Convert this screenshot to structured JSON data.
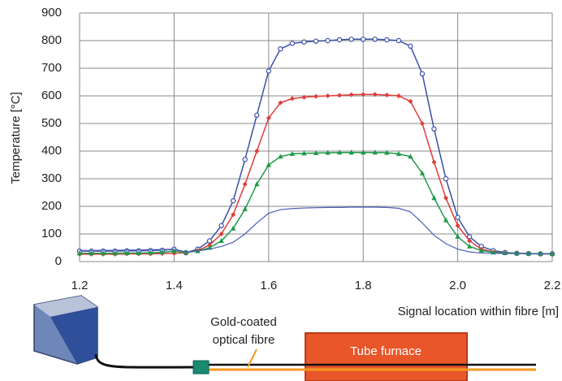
{
  "chart_data": {
    "type": "line",
    "y_label": "Temperature [°C]",
    "x_label": "Signal location within fibre [m]",
    "x": [
      1.2,
      1.225,
      1.25,
      1.275,
      1.3,
      1.325,
      1.35,
      1.375,
      1.4,
      1.425,
      1.45,
      1.475,
      1.5,
      1.525,
      1.55,
      1.575,
      1.6,
      1.625,
      1.65,
      1.675,
      1.7,
      1.725,
      1.75,
      1.775,
      1.8,
      1.825,
      1.85,
      1.875,
      1.9,
      1.925,
      1.95,
      1.975,
      2.0,
      2.025,
      2.05,
      2.075,
      2.1,
      2.125,
      2.15,
      2.175,
      2.2
    ],
    "series": [
      {
        "color": "#3a4fa8",
        "marker": "circle",
        "values": [
          38,
          38,
          38,
          38,
          39,
          39,
          40,
          41,
          45,
          32,
          45,
          75,
          130,
          220,
          370,
          530,
          690,
          770,
          790,
          795,
          798,
          800,
          803,
          805,
          805,
          805,
          803,
          800,
          780,
          680,
          480,
          300,
          160,
          90,
          55,
          40,
          33,
          30,
          29,
          28,
          28
        ]
      },
      {
        "color": "#e03c3c",
        "marker": "diamond",
        "values": [
          27,
          27,
          27,
          27,
          28,
          28,
          28,
          29,
          30,
          32,
          40,
          60,
          100,
          170,
          280,
          400,
          520,
          575,
          590,
          595,
          598,
          600,
          602,
          604,
          605,
          605,
          603,
          600,
          580,
          500,
          360,
          230,
          130,
          75,
          45,
          35,
          31,
          30,
          29,
          28,
          28
        ]
      },
      {
        "color": "#1f9a4a",
        "marker": "triangle",
        "values": [
          30,
          30,
          30,
          30,
          31,
          31,
          32,
          34,
          38,
          34,
          38,
          50,
          75,
          120,
          190,
          280,
          350,
          380,
          390,
          392,
          393,
          394,
          395,
          395,
          395,
          395,
          394,
          390,
          380,
          320,
          230,
          150,
          90,
          55,
          40,
          33,
          31,
          30,
          29,
          29,
          28
        ]
      },
      {
        "color": "#4a5fb8",
        "values": [
          40,
          40,
          41,
          41,
          42,
          42,
          43,
          44,
          45,
          35,
          38,
          45,
          55,
          70,
          100,
          140,
          175,
          188,
          192,
          194,
          195,
          196,
          196,
          197,
          197,
          197,
          196,
          193,
          180,
          140,
          95,
          65,
          45,
          35,
          31,
          30,
          29,
          29,
          28,
          28,
          28
        ]
      }
    ],
    "xlim": [
      1.2,
      2.2
    ],
    "ylim": [
      0,
      900
    ],
    "xticks": [
      1.2,
      1.4,
      1.6,
      1.8,
      {
        "value": 2.0,
        "label": "2.0"
      },
      2.2
    ],
    "yticks": [
      0,
      100,
      200,
      300,
      400,
      500,
      600,
      700,
      800,
      900
    ],
    "grid": true,
    "annotations": {
      "fibre": [
        "Gold-coated",
        "optical fibre"
      ],
      "furnace": "Tube furnace"
    }
  }
}
